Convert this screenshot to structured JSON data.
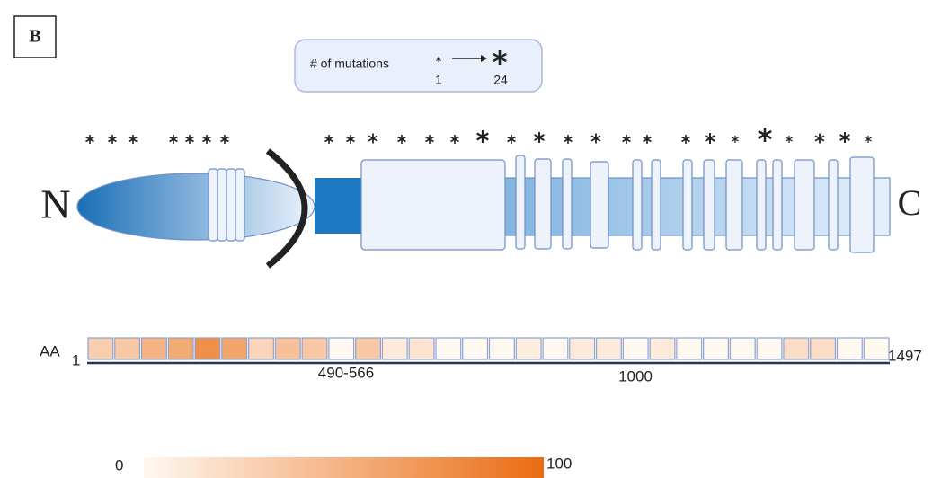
{
  "panel_label": "B",
  "legend": {
    "title": "# of mutations",
    "min_label": 1,
    "max_label": 24
  },
  "protein": {
    "n_label": "N",
    "c_label": "C"
  },
  "heatmap": {
    "axis_label": "AA",
    "start": 1,
    "end": 1497,
    "region_label": "490-566",
    "mid_label": 1000,
    "values": [
      30,
      35,
      50,
      55,
      75,
      60,
      25,
      40,
      35,
      0,
      35,
      10,
      15,
      0,
      0,
      0,
      8,
      0,
      10,
      10,
      0,
      10,
      0,
      0,
      0,
      0,
      20,
      20,
      0,
      0
    ]
  },
  "colorbar": {
    "min": 0,
    "max": 100,
    "low_color": "#fff8f1",
    "high_color": "#ea6c12"
  }
}
